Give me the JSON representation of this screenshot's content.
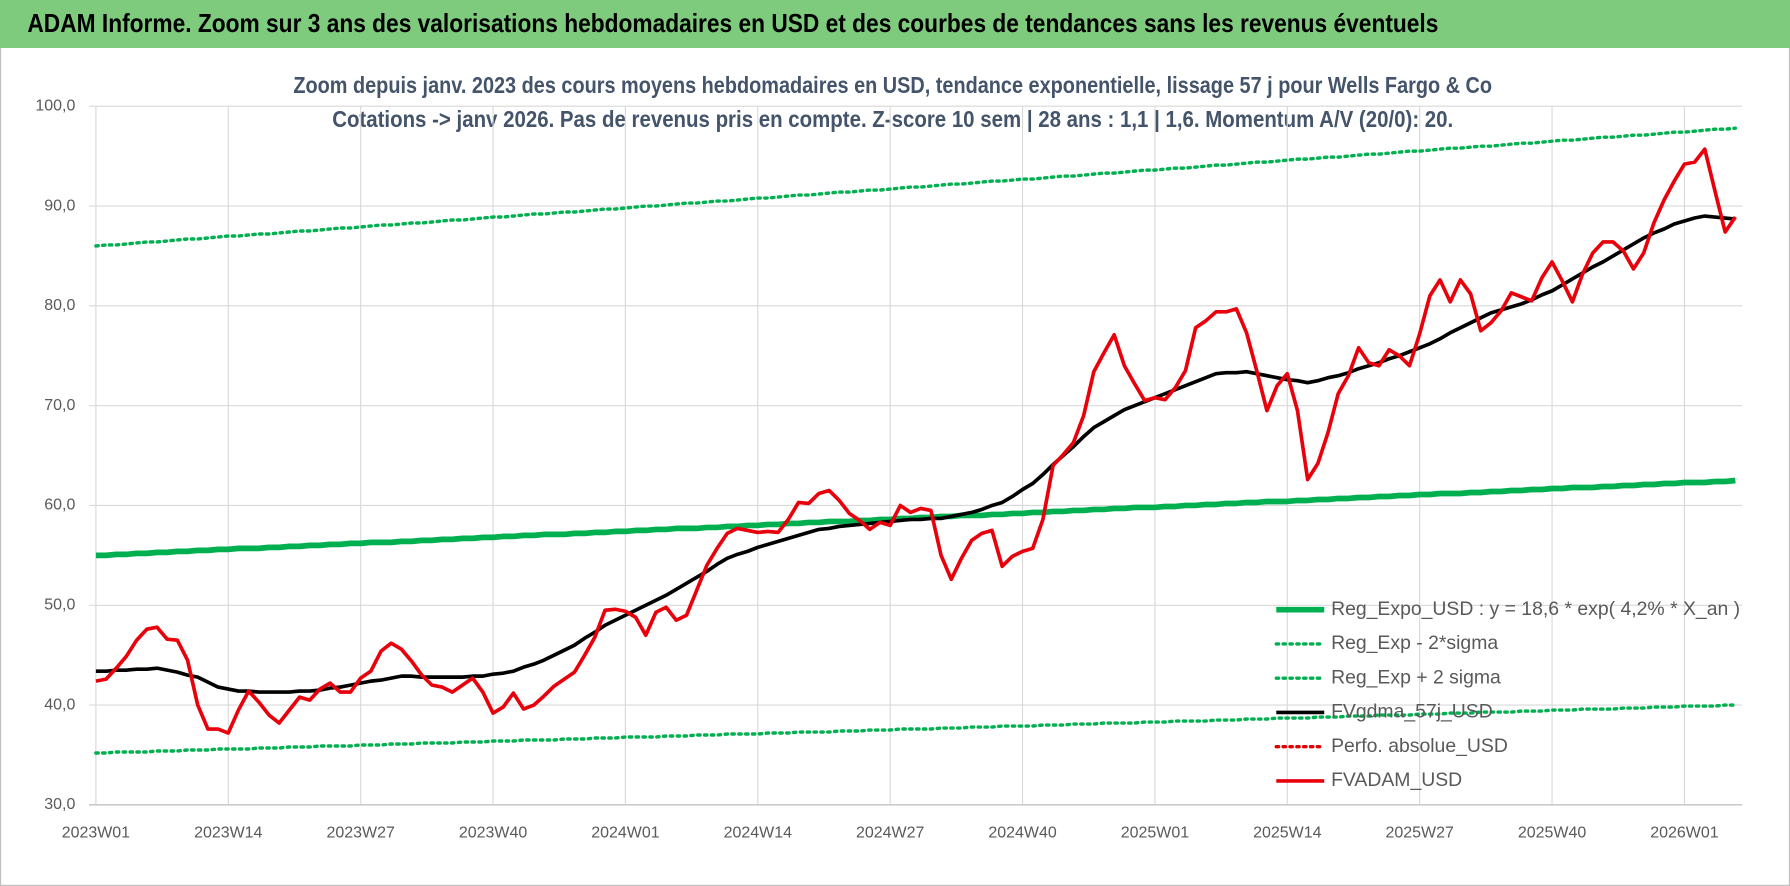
{
  "chart_data": {
    "type": "line",
    "header": "ADAM Informe. Zoom sur 3 ans des valorisations hebdomadaires en USD et des courbes de tendances sans les revenus éventuels",
    "title": "Zoom depuis janv. 2023 des cours moyens hebdomadaires en USD, tendance exponentielle, lissage 57 j pour Wells Fargo & Co",
    "subtitle": "Cotations -> janv 2026. Pas de revenus pris en compte. Z-score 10 sem  | 28 ans : 1,1 | 1,6. Momentum A/V (20/0): 20.",
    "categories": [
      "2023W01",
      null,
      null,
      null,
      null,
      null,
      null,
      null,
      null,
      null,
      null,
      null,
      null,
      "2023W14",
      null,
      null,
      null,
      null,
      null,
      null,
      null,
      null,
      null,
      null,
      null,
      null,
      "2023W27",
      null,
      null,
      null,
      null,
      null,
      null,
      null,
      null,
      null,
      null,
      null,
      null,
      "2023W40",
      null,
      null,
      null,
      null,
      null,
      null,
      null,
      null,
      null,
      null,
      null,
      null,
      "2024W01",
      null,
      null,
      null,
      null,
      null,
      null,
      null,
      null,
      null,
      null,
      null,
      null,
      "2024W14",
      null,
      null,
      null,
      null,
      null,
      null,
      null,
      null,
      null,
      null,
      null,
      null,
      "2024W27",
      null,
      null,
      null,
      null,
      null,
      null,
      null,
      null,
      null,
      null,
      null,
      null,
      "2024W40",
      null,
      null,
      null,
      null,
      null,
      null,
      null,
      null,
      null,
      null,
      null,
      null,
      "2025W01",
      null,
      null,
      null,
      null,
      null,
      null,
      null,
      null,
      null,
      null,
      null,
      null,
      "2025W14",
      null,
      null,
      null,
      null,
      null,
      null,
      null,
      null,
      null,
      null,
      null,
      null,
      "2025W27",
      null,
      null,
      null,
      null,
      null,
      null,
      null,
      null,
      null,
      null,
      null,
      null,
      "2025W40",
      null,
      null,
      null,
      null,
      null,
      null,
      null,
      null,
      null,
      null,
      null,
      null,
      "2026W01",
      null,
      null,
      null,
      null,
      null
    ],
    "ylim": [
      30,
      100
    ],
    "yticks": [
      {
        "value": 30,
        "label": "30,0"
      },
      {
        "value": 40,
        "label": "40,0"
      },
      {
        "value": 50,
        "label": "50,0"
      },
      {
        "value": 60,
        "label": "60,0"
      },
      {
        "value": 70,
        "label": "70,0"
      },
      {
        "value": 80,
        "label": "80,0"
      },
      {
        "value": 90,
        "label": "90,0"
      },
      {
        "value": 100,
        "label": "100,0"
      }
    ],
    "grid": true,
    "legend": "lower right",
    "series": [
      {
        "name": "Reg_Expo_USD : y = 18,6 * exp( 4,2% *  X_an )",
        "color": "#00b050",
        "style": "bold",
        "values": [
          55.0,
          55.0,
          55.1,
          55.1,
          55.2,
          55.2,
          55.3,
          55.3,
          55.4,
          55.4,
          55.5,
          55.5,
          55.6,
          55.6,
          55.7,
          55.7,
          55.7,
          55.8,
          55.8,
          55.9,
          55.9,
          56.0,
          56.0,
          56.1,
          56.1,
          56.2,
          56.2,
          56.3,
          56.3,
          56.3,
          56.4,
          56.4,
          56.5,
          56.5,
          56.6,
          56.6,
          56.7,
          56.7,
          56.8,
          56.8,
          56.9,
          56.9,
          57.0,
          57.0,
          57.1,
          57.1,
          57.1,
          57.2,
          57.2,
          57.3,
          57.3,
          57.4,
          57.4,
          57.5,
          57.5,
          57.6,
          57.6,
          57.7,
          57.7,
          57.7,
          57.8,
          57.8,
          57.9,
          57.9,
          58.0,
          58.0,
          58.1,
          58.1,
          58.2,
          58.2,
          58.3,
          58.3,
          58.4,
          58.4,
          58.4,
          58.5,
          58.5,
          58.6,
          58.6,
          58.7,
          58.7,
          58.8,
          58.8,
          58.9,
          58.9,
          59.0,
          59.0,
          59.0,
          59.1,
          59.1,
          59.2,
          59.2,
          59.3,
          59.3,
          59.4,
          59.4,
          59.5,
          59.5,
          59.6,
          59.6,
          59.7,
          59.7,
          59.8,
          59.8,
          59.8,
          59.9,
          59.9,
          60.0,
          60.0,
          60.1,
          60.1,
          60.2,
          60.2,
          60.3,
          60.3,
          60.4,
          60.4,
          60.4,
          60.5,
          60.5,
          60.6,
          60.6,
          60.7,
          60.7,
          60.8,
          60.8,
          60.9,
          60.9,
          61.0,
          61.0,
          61.1,
          61.1,
          61.2,
          61.2,
          61.2,
          61.3,
          61.3,
          61.4,
          61.4,
          61.5,
          61.5,
          61.6,
          61.6,
          61.7,
          61.7,
          61.8,
          61.8,
          61.8,
          61.9,
          61.9,
          62.0,
          62.0,
          62.1,
          62.1,
          62.2,
          62.2,
          62.3,
          62.3,
          62.3,
          62.4,
          62.4,
          62.5
        ]
      },
      {
        "name": "Reg_Exp - 2*sigma",
        "color": "#00b050",
        "style": "dotted",
        "values": [
          35.2,
          35.2,
          35.3,
          35.3,
          35.3,
          35.3,
          35.4,
          35.4,
          35.4,
          35.5,
          35.5,
          35.5,
          35.6,
          35.6,
          35.6,
          35.6,
          35.7,
          35.7,
          35.7,
          35.8,
          35.8,
          35.8,
          35.9,
          35.9,
          35.9,
          35.9,
          36.0,
          36.0,
          36.0,
          36.1,
          36.1,
          36.1,
          36.2,
          36.2,
          36.2,
          36.2,
          36.3,
          36.3,
          36.3,
          36.4,
          36.4,
          36.4,
          36.5,
          36.5,
          36.5,
          36.5,
          36.6,
          36.6,
          36.6,
          36.7,
          36.7,
          36.7,
          36.8,
          36.8,
          36.8,
          36.8,
          36.9,
          36.9,
          36.9,
          37.0,
          37.0,
          37.0,
          37.1,
          37.1,
          37.1,
          37.1,
          37.2,
          37.2,
          37.2,
          37.3,
          37.3,
          37.3,
          37.3,
          37.4,
          37.4,
          37.4,
          37.5,
          37.5,
          37.5,
          37.6,
          37.6,
          37.6,
          37.6,
          37.7,
          37.7,
          37.7,
          37.8,
          37.8,
          37.8,
          37.9,
          37.9,
          37.9,
          37.9,
          38.0,
          38.0,
          38.0,
          38.1,
          38.1,
          38.1,
          38.2,
          38.2,
          38.2,
          38.2,
          38.3,
          38.3,
          38.3,
          38.4,
          38.4,
          38.4,
          38.4,
          38.5,
          38.5,
          38.5,
          38.6,
          38.6,
          38.6,
          38.7,
          38.7,
          38.7,
          38.7,
          38.8,
          38.8,
          38.8,
          38.9,
          38.9,
          38.9,
          39.0,
          39.0,
          39.0,
          39.0,
          39.1,
          39.1,
          39.1,
          39.2,
          39.2,
          39.2,
          39.3,
          39.3,
          39.3,
          39.3,
          39.4,
          39.4,
          39.4,
          39.5,
          39.5,
          39.5,
          39.6,
          39.6,
          39.6,
          39.6,
          39.7,
          39.7,
          39.7,
          39.8,
          39.8,
          39.8,
          39.9,
          39.9,
          39.9,
          39.9,
          40.0,
          40.0
        ]
      },
      {
        "name": "Reg_Exp + 2 sigma",
        "color": "#00b050",
        "style": "dotted",
        "values": [
          86.0,
          86.1,
          86.1,
          86.2,
          86.3,
          86.4,
          86.4,
          86.5,
          86.6,
          86.7,
          86.7,
          86.8,
          86.9,
          87.0,
          87.0,
          87.1,
          87.2,
          87.2,
          87.3,
          87.4,
          87.5,
          87.5,
          87.6,
          87.7,
          87.8,
          87.8,
          87.9,
          88.0,
          88.1,
          88.1,
          88.2,
          88.3,
          88.3,
          88.4,
          88.5,
          88.6,
          88.6,
          88.7,
          88.8,
          88.9,
          88.9,
          89.0,
          89.1,
          89.2,
          89.2,
          89.3,
          89.4,
          89.4,
          89.5,
          89.6,
          89.7,
          89.7,
          89.8,
          89.9,
          90.0,
          90.0,
          90.1,
          90.2,
          90.3,
          90.3,
          90.4,
          90.5,
          90.5,
          90.6,
          90.7,
          90.8,
          90.8,
          90.9,
          91.0,
          91.1,
          91.1,
          91.2,
          91.3,
          91.4,
          91.4,
          91.5,
          91.6,
          91.6,
          91.7,
          91.8,
          91.9,
          91.9,
          92.0,
          92.1,
          92.2,
          92.2,
          92.3,
          92.4,
          92.5,
          92.5,
          92.6,
          92.7,
          92.7,
          92.8,
          92.9,
          93.0,
          93.0,
          93.1,
          93.2,
          93.3,
          93.3,
          93.4,
          93.5,
          93.6,
          93.6,
          93.7,
          93.8,
          93.8,
          93.9,
          94.0,
          94.1,
          94.1,
          94.2,
          94.3,
          94.4,
          94.4,
          94.5,
          94.6,
          94.7,
          94.7,
          94.8,
          94.9,
          94.9,
          95.0,
          95.1,
          95.2,
          95.2,
          95.3,
          95.4,
          95.5,
          95.5,
          95.6,
          95.7,
          95.8,
          95.8,
          95.9,
          96.0,
          96.0,
          96.1,
          96.2,
          96.3,
          96.3,
          96.4,
          96.5,
          96.6,
          96.6,
          96.7,
          96.8,
          96.9,
          96.9,
          97.0,
          97.1,
          97.1,
          97.2,
          97.3,
          97.4,
          97.4,
          97.5,
          97.6,
          97.7,
          97.7,
          97.8
        ]
      },
      {
        "name": "FVgdma_57j_USD",
        "color": "#000000",
        "style": "solid",
        "values": [
          43.4,
          43.4,
          43.5,
          43.5,
          43.6,
          43.6,
          43.7,
          43.5,
          43.3,
          43.0,
          42.8,
          42.3,
          41.8,
          41.6,
          41.4,
          41.4,
          41.3,
          41.3,
          41.3,
          41.3,
          41.4,
          41.4,
          41.5,
          41.7,
          41.8,
          42.0,
          42.2,
          42.4,
          42.5,
          42.7,
          42.9,
          42.9,
          42.8,
          42.8,
          42.8,
          42.8,
          42.8,
          42.9,
          42.9,
          43.1,
          43.2,
          43.4,
          43.8,
          44.1,
          44.5,
          45.0,
          45.5,
          46.0,
          46.7,
          47.3,
          48.0,
          48.5,
          49.0,
          49.5,
          50.0,
          50.5,
          51.0,
          51.6,
          52.2,
          52.8,
          53.4,
          54.1,
          54.7,
          55.1,
          55.4,
          55.8,
          56.1,
          56.4,
          56.7,
          57.0,
          57.3,
          57.6,
          57.7,
          57.9,
          58.0,
          58.1,
          58.2,
          58.3,
          58.4,
          58.5,
          58.6,
          58.6,
          58.7,
          58.7,
          58.9,
          59.1,
          59.3,
          59.6,
          60.0,
          60.3,
          60.9,
          61.6,
          62.2,
          63.1,
          64.1,
          65.0,
          65.9,
          66.9,
          67.8,
          68.4,
          69.0,
          69.6,
          70.0,
          70.4,
          70.8,
          71.2,
          71.6,
          72.0,
          72.4,
          72.8,
          73.2,
          73.3,
          73.3,
          73.4,
          73.2,
          73.0,
          72.8,
          72.6,
          72.5,
          72.3,
          72.5,
          72.8,
          73.0,
          73.3,
          73.7,
          74.0,
          74.3,
          74.7,
          75.0,
          75.4,
          75.8,
          76.2,
          76.7,
          77.3,
          77.8,
          78.3,
          78.8,
          79.3,
          79.6,
          79.9,
          80.2,
          80.6,
          81.1,
          81.5,
          82.1,
          82.7,
          83.3,
          83.9,
          84.4,
          85.0,
          85.6,
          86.2,
          86.8,
          87.3,
          87.7,
          88.2,
          88.5,
          88.8,
          89.0,
          88.9,
          88.8,
          88.7
        ]
      },
      {
        "name": "Perfo. absolue_USD",
        "color": "#e00000",
        "style": "dotted"
      },
      {
        "name": "FVADAM_USD",
        "color": "#e8000b",
        "style": "solid",
        "values": [
          42.4,
          42.6,
          43.7,
          44.9,
          46.5,
          47.6,
          47.8,
          46.6,
          46.5,
          44.5,
          40.0,
          37.6,
          37.6,
          37.2,
          39.5,
          41.4,
          40.3,
          39.0,
          38.2,
          39.5,
          40.8,
          40.5,
          41.6,
          42.2,
          41.3,
          41.3,
          42.7,
          43.4,
          45.4,
          46.2,
          45.6,
          44.4,
          43.0,
          42.0,
          41.8,
          41.3,
          42.0,
          42.7,
          41.3,
          39.2,
          39.8,
          41.2,
          39.6,
          40.0,
          40.9,
          41.9,
          42.6,
          43.3,
          45.0,
          46.8,
          49.5,
          49.6,
          49.4,
          48.8,
          47.0,
          49.3,
          49.8,
          48.5,
          49.0,
          51.5,
          54.0,
          55.7,
          57.2,
          57.7,
          57.5,
          57.3,
          57.4,
          57.3,
          58.6,
          60.3,
          60.2,
          61.2,
          61.5,
          60.5,
          59.2,
          58.5,
          57.6,
          58.3,
          58.0,
          60.0,
          59.3,
          59.7,
          59.5,
          55.0,
          52.6,
          54.7,
          56.5,
          57.2,
          57.5,
          53.9,
          54.9,
          55.4,
          55.7,
          58.6,
          64.0,
          65.1,
          66.3,
          69.0,
          73.4,
          75.3,
          77.1,
          74.0,
          72.2,
          70.5,
          70.8,
          70.6,
          71.8,
          73.5,
          77.8,
          78.5,
          79.4,
          79.4,
          79.7,
          77.3,
          73.5,
          69.5,
          72.0,
          73.2,
          69.5,
          62.6,
          64.2,
          67.3,
          71.2,
          73.0,
          75.8,
          74.3,
          74.0,
          75.6,
          75.0,
          74.0,
          77.2,
          81.0,
          82.6,
          80.4,
          82.6,
          81.2,
          77.5,
          78.3,
          79.5,
          81.3,
          80.9,
          80.5,
          82.8,
          84.4,
          82.5,
          80.4,
          83.2,
          85.3,
          86.4,
          86.4,
          85.5,
          83.7,
          85.3,
          88.3,
          90.6,
          92.5,
          94.2,
          94.4,
          95.7,
          91.5,
          87.4,
          88.9
        ]
      }
    ]
  }
}
